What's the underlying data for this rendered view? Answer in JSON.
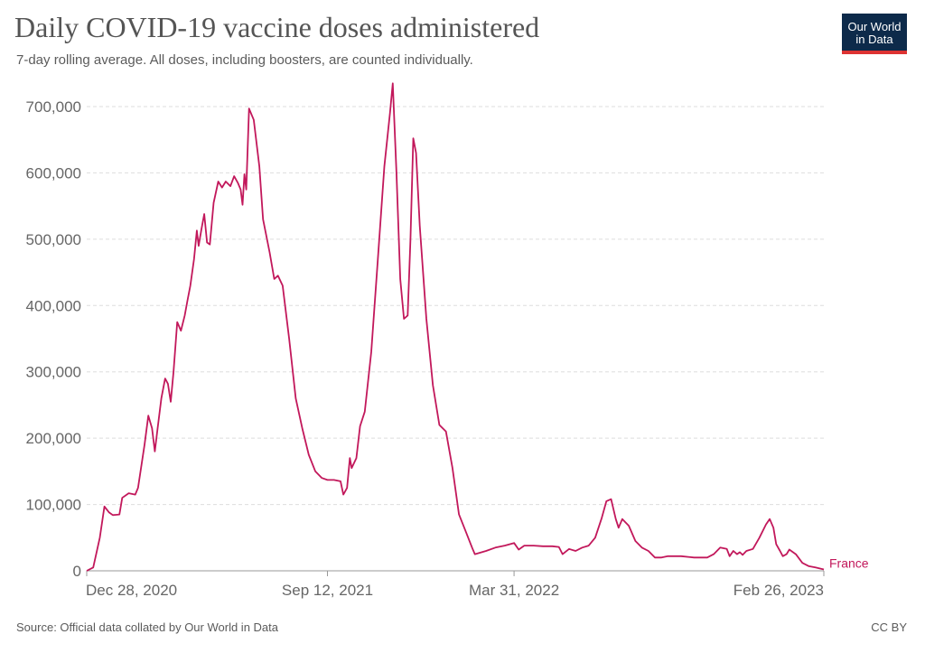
{
  "header": {
    "title": "Daily COVID-19 vaccine doses administered",
    "subtitle": "7-day rolling average. All doses, including boosters, are counted individually.",
    "logo_line1": "Our World",
    "logo_line2": "in Data"
  },
  "footer": {
    "source": "Source: Official data collated by Our World in Data",
    "license": "CC BY"
  },
  "colors": {
    "series": "#c2185b",
    "grid": "#dddddd",
    "axis_text": "#666666"
  },
  "chart_data": {
    "type": "line",
    "title": "Daily COVID-19 vaccine doses administered",
    "subtitle": "7-day rolling average. All doses, including boosters, are counted individually.",
    "xlabel": "",
    "ylabel": "",
    "x_range": [
      "2020-12-28",
      "2023-02-26"
    ],
    "ylim": [
      0,
      700000
    ],
    "y_ticks": [
      0,
      100000,
      200000,
      300000,
      400000,
      500000,
      600000,
      700000
    ],
    "y_tick_labels": [
      "0",
      "100,000",
      "200,000",
      "300,000",
      "400,000",
      "500,000",
      "600,000",
      "700,000"
    ],
    "x_ticks": [
      "2020-12-28",
      "2021-09-12",
      "2022-03-31",
      "2023-02-26"
    ],
    "x_tick_labels": [
      "Dec 28, 2020",
      "Sep 12, 2021",
      "Mar 31, 2022",
      "Feb 26, 2023"
    ],
    "grid": "horizontal dashed",
    "legend": "end-of-line label",
    "series": [
      {
        "name": "France",
        "points": [
          [
            "2020-12-28",
            0
          ],
          [
            "2021-01-04",
            5000
          ],
          [
            "2021-01-11",
            50000
          ],
          [
            "2021-01-16",
            97000
          ],
          [
            "2021-01-21",
            88000
          ],
          [
            "2021-01-25",
            84000
          ],
          [
            "2021-02-01",
            85000
          ],
          [
            "2021-02-04",
            110000
          ],
          [
            "2021-02-11",
            117000
          ],
          [
            "2021-02-18",
            115000
          ],
          [
            "2021-02-21",
            125000
          ],
          [
            "2021-02-28",
            190000
          ],
          [
            "2021-03-04",
            234000
          ],
          [
            "2021-03-08",
            215000
          ],
          [
            "2021-03-11",
            180000
          ],
          [
            "2021-03-14",
            215000
          ],
          [
            "2021-03-18",
            260000
          ],
          [
            "2021-03-22",
            290000
          ],
          [
            "2021-03-25",
            282000
          ],
          [
            "2021-03-28",
            255000
          ],
          [
            "2021-03-31",
            300000
          ],
          [
            "2021-04-04",
            375000
          ],
          [
            "2021-04-08",
            362000
          ],
          [
            "2021-04-12",
            385000
          ],
          [
            "2021-04-15",
            408000
          ],
          [
            "2021-04-18",
            430000
          ],
          [
            "2021-04-22",
            470000
          ],
          [
            "2021-04-25",
            513000
          ],
          [
            "2021-04-27",
            490000
          ],
          [
            "2021-04-30",
            515000
          ],
          [
            "2021-05-03",
            538000
          ],
          [
            "2021-05-06",
            495000
          ],
          [
            "2021-05-09",
            492000
          ],
          [
            "2021-05-13",
            555000
          ],
          [
            "2021-05-18",
            587000
          ],
          [
            "2021-05-22",
            578000
          ],
          [
            "2021-05-26",
            587000
          ],
          [
            "2021-05-31",
            580000
          ],
          [
            "2021-06-04",
            595000
          ],
          [
            "2021-06-08",
            585000
          ],
          [
            "2021-06-11",
            575000
          ],
          [
            "2021-06-13",
            552000
          ],
          [
            "2021-06-15",
            598000
          ],
          [
            "2021-06-17",
            575000
          ],
          [
            "2021-06-20",
            697000
          ],
          [
            "2021-06-25",
            680000
          ],
          [
            "2021-07-01",
            610000
          ],
          [
            "2021-07-05",
            530000
          ],
          [
            "2021-07-12",
            480000
          ],
          [
            "2021-07-17",
            440000
          ],
          [
            "2021-07-21",
            445000
          ],
          [
            "2021-07-26",
            430000
          ],
          [
            "2021-08-02",
            350000
          ],
          [
            "2021-08-09",
            260000
          ],
          [
            "2021-08-16",
            215000
          ],
          [
            "2021-08-23",
            175000
          ],
          [
            "2021-08-30",
            150000
          ],
          [
            "2021-09-06",
            140000
          ],
          [
            "2021-09-12",
            137000
          ],
          [
            "2021-09-19",
            137000
          ],
          [
            "2021-09-26",
            135000
          ],
          [
            "2021-09-29",
            115000
          ],
          [
            "2021-10-03",
            125000
          ],
          [
            "2021-10-06",
            170000
          ],
          [
            "2021-10-08",
            155000
          ],
          [
            "2021-10-13",
            170000
          ],
          [
            "2021-10-17",
            218000
          ],
          [
            "2021-10-22",
            240000
          ],
          [
            "2021-10-29",
            330000
          ],
          [
            "2021-11-05",
            470000
          ],
          [
            "2021-11-12",
            610000
          ],
          [
            "2021-11-18",
            690000
          ],
          [
            "2021-11-21",
            735000
          ],
          [
            "2021-11-25",
            600000
          ],
          [
            "2021-11-29",
            440000
          ],
          [
            "2021-12-03",
            380000
          ],
          [
            "2021-12-07",
            385000
          ],
          [
            "2021-12-10",
            500000
          ],
          [
            "2021-12-13",
            652000
          ],
          [
            "2021-12-16",
            630000
          ],
          [
            "2021-12-20",
            520000
          ],
          [
            "2021-12-27",
            380000
          ],
          [
            "2022-01-03",
            280000
          ],
          [
            "2022-01-10",
            220000
          ],
          [
            "2022-01-17",
            210000
          ],
          [
            "2022-01-24",
            155000
          ],
          [
            "2022-01-31",
            85000
          ],
          [
            "2022-02-07",
            60000
          ],
          [
            "2022-02-14",
            35000
          ],
          [
            "2022-02-17",
            25000
          ],
          [
            "2022-03-01",
            30000
          ],
          [
            "2022-03-11",
            35000
          ],
          [
            "2022-03-21",
            38000
          ],
          [
            "2022-03-31",
            42000
          ],
          [
            "2022-04-05",
            32000
          ],
          [
            "2022-04-11",
            38000
          ],
          [
            "2022-04-21",
            38000
          ],
          [
            "2022-05-01",
            37000
          ],
          [
            "2022-05-11",
            37000
          ],
          [
            "2022-05-18",
            36000
          ],
          [
            "2022-05-22",
            25000
          ],
          [
            "2022-05-29",
            33000
          ],
          [
            "2022-06-05",
            30000
          ],
          [
            "2022-06-12",
            35000
          ],
          [
            "2022-06-19",
            38000
          ],
          [
            "2022-06-26",
            50000
          ],
          [
            "2022-07-03",
            80000
          ],
          [
            "2022-07-08",
            105000
          ],
          [
            "2022-07-13",
            108000
          ],
          [
            "2022-07-18",
            78000
          ],
          [
            "2022-07-21",
            65000
          ],
          [
            "2022-07-25",
            78000
          ],
          [
            "2022-08-01",
            68000
          ],
          [
            "2022-08-08",
            45000
          ],
          [
            "2022-08-15",
            35000
          ],
          [
            "2022-08-22",
            30000
          ],
          [
            "2022-08-29",
            20000
          ],
          [
            "2022-09-05",
            20000
          ],
          [
            "2022-09-12",
            22000
          ],
          [
            "2022-09-26",
            22000
          ],
          [
            "2022-10-10",
            20000
          ],
          [
            "2022-10-24",
            20000
          ],
          [
            "2022-10-31",
            25000
          ],
          [
            "2022-11-07",
            35000
          ],
          [
            "2022-11-14",
            33000
          ],
          [
            "2022-11-17",
            22000
          ],
          [
            "2022-11-21",
            30000
          ],
          [
            "2022-11-25",
            25000
          ],
          [
            "2022-11-28",
            28000
          ],
          [
            "2022-12-01",
            24000
          ],
          [
            "2022-12-05",
            30000
          ],
          [
            "2022-12-12",
            33000
          ],
          [
            "2022-12-19",
            50000
          ],
          [
            "2022-12-26",
            70000
          ],
          [
            "2022-12-30",
            78000
          ],
          [
            "2023-01-03",
            65000
          ],
          [
            "2023-01-06",
            40000
          ],
          [
            "2023-01-10",
            30000
          ],
          [
            "2023-01-13",
            22000
          ],
          [
            "2023-01-17",
            25000
          ],
          [
            "2023-01-20",
            32000
          ],
          [
            "2023-01-27",
            25000
          ],
          [
            "2023-02-03",
            12000
          ],
          [
            "2023-02-10",
            7000
          ],
          [
            "2023-02-17",
            5000
          ],
          [
            "2023-02-26",
            2000
          ]
        ]
      }
    ]
  }
}
